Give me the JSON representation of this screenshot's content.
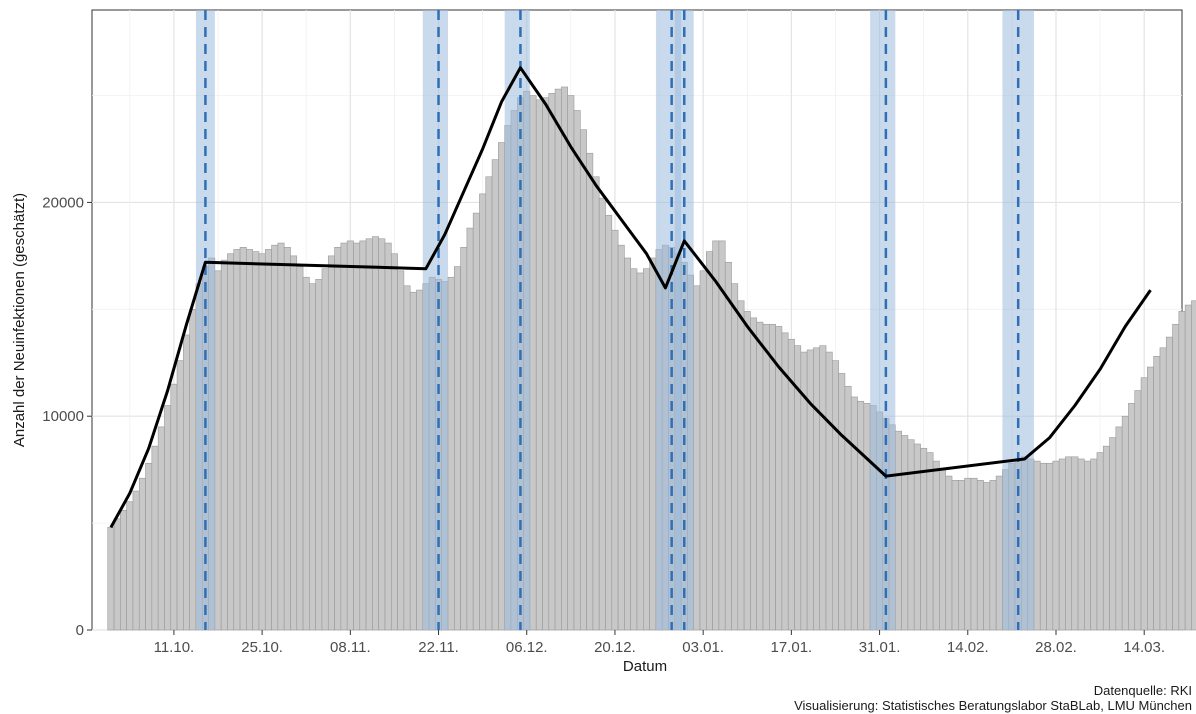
{
  "chart_data": {
    "type": "bar",
    "xlabel": "Datum",
    "ylabel": "Anzahl der Neuinfektionen (geschätzt)",
    "ylim": [
      0,
      29000
    ],
    "x_range": [
      "2020-09-28",
      "2021-03-20"
    ],
    "y_ticks": [
      {
        "value": 0,
        "label": "0"
      },
      {
        "value": 10000,
        "label": "10000"
      },
      {
        "value": 20000,
        "label": "20000"
      }
    ],
    "x_ticks": [
      {
        "date": "2020-10-11",
        "label": "11.10."
      },
      {
        "date": "2020-10-25",
        "label": "25.10."
      },
      {
        "date": "2020-11-08",
        "label": "08.11."
      },
      {
        "date": "2020-11-22",
        "label": "22.11."
      },
      {
        "date": "2020-12-06",
        "label": "06.12."
      },
      {
        "date": "2020-12-20",
        "label": "20.12."
      },
      {
        "date": "2021-01-03",
        "label": "03.01."
      },
      {
        "date": "2021-01-17",
        "label": "17.01."
      },
      {
        "date": "2021-01-31",
        "label": "31.01."
      },
      {
        "date": "2021-02-14",
        "label": "14.02."
      },
      {
        "date": "2021-02-28",
        "label": "28.02."
      },
      {
        "date": "2021-03-14",
        "label": "14.03."
      }
    ],
    "grid": true,
    "bar_color": "#c8c8c8",
    "bar_edge_color": "#999999",
    "trend_color": "#000000",
    "breakpoint_color": "#2f6fb5",
    "band_color": "#9dbbdc",
    "bars": {
      "start_date": "2020-10-01",
      "values": [
        4800,
        5200,
        5600,
        6000,
        6500,
        7100,
        7800,
        8600,
        9500,
        10500,
        11500,
        12600,
        13800,
        15000,
        16200,
        17000,
        17400,
        16800,
        17300,
        17600,
        17800,
        17900,
        17800,
        17700,
        17600,
        17800,
        18000,
        18100,
        17900,
        17500,
        17000,
        16500,
        16200,
        16400,
        16900,
        17500,
        17900,
        18100,
        18200,
        18100,
        18200,
        18300,
        18400,
        18300,
        18100,
        17600,
        16800,
        16100,
        15800,
        15900,
        16200,
        16500,
        16400,
        16300,
        16500,
        17000,
        17900,
        18800,
        19500,
        20400,
        21200,
        22000,
        22800,
        23600,
        24300,
        24900,
        25200,
        25000,
        24800,
        24900,
        25100,
        25300,
        25400,
        25000,
        24300,
        23400,
        22300,
        21200,
        20200,
        19400,
        18700,
        18000,
        17400,
        16900,
        16700,
        16900,
        17400,
        17800,
        18000,
        17900,
        17600,
        17200,
        16600,
        16100,
        16800,
        17700,
        18200,
        18200,
        17200,
        16200,
        15400,
        14900,
        14600,
        14400,
        14300,
        14300,
        14200,
        13900,
        13600,
        13300,
        13000,
        13100,
        13200,
        13300,
        13000,
        12600,
        12000,
        11400,
        10900,
        10700,
        10600,
        10500,
        10200,
        9900,
        9600,
        9300,
        9100,
        8900,
        8700,
        8500,
        8300,
        7900,
        7500,
        7200,
        7000,
        7000,
        7100,
        7100,
        7000,
        6900,
        7000,
        7200,
        7500,
        7800,
        8000,
        8100,
        8000,
        7900,
        7800,
        7800,
        7900,
        8000,
        8100,
        8100,
        8000,
        7900,
        8000,
        8300,
        8600,
        9000,
        9500,
        10000,
        10600,
        11200,
        11800,
        12300,
        12800,
        13200,
        13700,
        14300,
        14900,
        15200,
        15400,
        15800
      ]
    },
    "trend_line": [
      {
        "date": "2020-10-01",
        "value": 4800
      },
      {
        "date": "2020-10-04",
        "value": 6400
      },
      {
        "date": "2020-10-07",
        "value": 8500
      },
      {
        "date": "2020-10-10",
        "value": 11200
      },
      {
        "date": "2020-10-13",
        "value": 14300
      },
      {
        "date": "2020-10-16",
        "value": 17200
      },
      {
        "date": "2020-11-20",
        "value": 16900
      },
      {
        "date": "2020-11-23",
        "value": 18500
      },
      {
        "date": "2020-11-26",
        "value": 20500
      },
      {
        "date": "2020-11-29",
        "value": 22500
      },
      {
        "date": "2020-12-02",
        "value": 24700
      },
      {
        "date": "2020-12-05",
        "value": 26300
      },
      {
        "date": "2020-12-09",
        "value": 24600
      },
      {
        "date": "2020-12-13",
        "value": 22600
      },
      {
        "date": "2020-12-17",
        "value": 20800
      },
      {
        "date": "2020-12-21",
        "value": 19200
      },
      {
        "date": "2020-12-25",
        "value": 17600
      },
      {
        "date": "2020-12-28",
        "value": 16000
      },
      {
        "date": "2020-12-31",
        "value": 18200
      },
      {
        "date": "2021-01-05",
        "value": 16300
      },
      {
        "date": "2021-01-10",
        "value": 14200
      },
      {
        "date": "2021-01-15",
        "value": 12300
      },
      {
        "date": "2021-01-20",
        "value": 10600
      },
      {
        "date": "2021-01-25",
        "value": 9100
      },
      {
        "date": "2021-02-01",
        "value": 7200
      },
      {
        "date": "2021-02-23",
        "value": 8000
      },
      {
        "date": "2021-02-27",
        "value": 9000
      },
      {
        "date": "2021-03-03",
        "value": 10500
      },
      {
        "date": "2021-03-07",
        "value": 12200
      },
      {
        "date": "2021-03-11",
        "value": 14200
      },
      {
        "date": "2021-03-15",
        "value": 15900
      }
    ],
    "breakpoints": [
      {
        "date": "2020-10-16",
        "band": [
          "2020-10-15",
          "2020-10-17"
        ]
      },
      {
        "date": "2020-11-22",
        "band": [
          "2020-11-20",
          "2020-11-23"
        ]
      },
      {
        "date": "2020-12-05",
        "band": [
          "2020-12-03",
          "2020-12-06"
        ]
      },
      {
        "date": "2020-12-29",
        "band": [
          "2020-12-27",
          "2020-12-30"
        ]
      },
      {
        "date": "2020-12-31",
        "band": [
          "2020-12-30",
          "2021-01-01"
        ]
      },
      {
        "date": "2021-02-01",
        "band": [
          "2021-01-30",
          "2021-02-02"
        ]
      },
      {
        "date": "2021-02-22",
        "band": [
          "2021-02-20",
          "2021-02-24"
        ]
      }
    ]
  },
  "caption": {
    "source": "Datenquelle: RKI",
    "credit": "Visualisierung: Statistisches Beratungslabor StaBLab, LMU München"
  }
}
